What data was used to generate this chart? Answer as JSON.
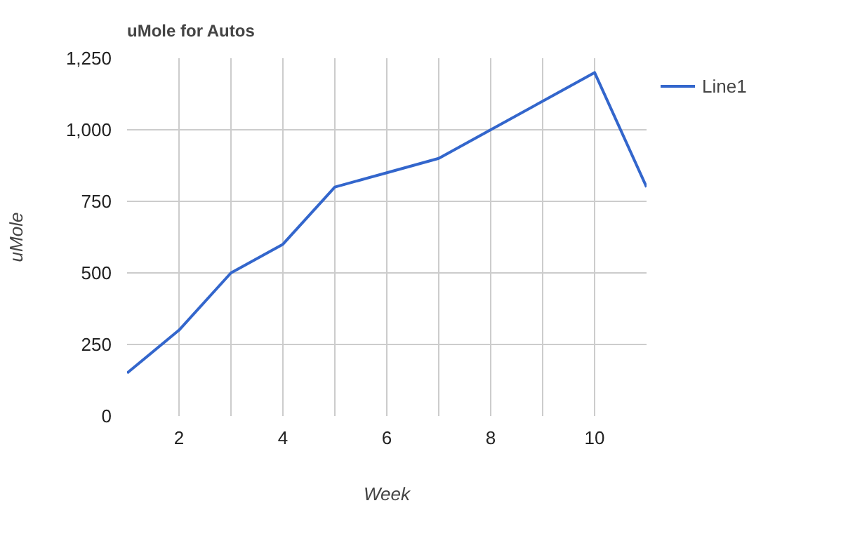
{
  "chart_data": {
    "type": "line",
    "title": "uMole for Autos",
    "xlabel": "Week",
    "ylabel": "uMole",
    "x": [
      1,
      2,
      3,
      4,
      5,
      6,
      7,
      8,
      9,
      10,
      11
    ],
    "series": [
      {
        "name": "Line1",
        "color": "#3366cc",
        "values": [
          150,
          300,
          500,
          600,
          800,
          850,
          900,
          1000,
          1100,
          1200,
          800
        ]
      }
    ],
    "xlim": [
      1,
      11
    ],
    "xticks": [
      2,
      {
        "value": 3,
        "label": null
      },
      4,
      {
        "value": 5,
        "label": null
      },
      6,
      {
        "value": 7,
        "label": null
      },
      8,
      {
        "value": 9,
        "label": null
      },
      10
    ],
    "ylim": [
      0,
      1250
    ],
    "yticks": [
      {
        "value": 0,
        "label": "0"
      },
      {
        "value": 250,
        "label": "250"
      },
      {
        "value": 500,
        "label": "500"
      },
      {
        "value": 750,
        "label": "750"
      },
      {
        "value": 1000,
        "label": "1,000"
      },
      {
        "value": 1250,
        "label": "1,250"
      }
    ],
    "grid": true,
    "legend": "right",
    "marker": "none",
    "line_style": "solid"
  }
}
